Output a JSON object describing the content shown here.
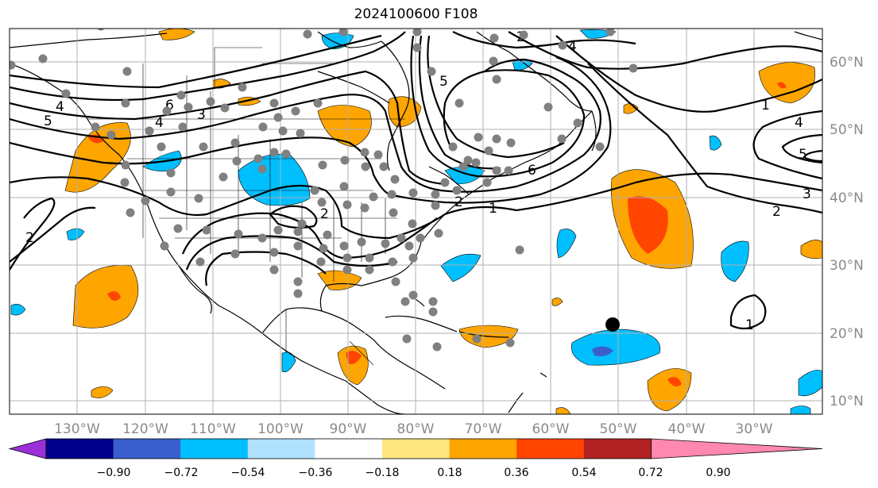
{
  "title": "2024100600 F108",
  "lon_labels": [
    "130°W",
    "120°W",
    "110°W",
    "100°W",
    "90°W",
    "80°W",
    "70°W",
    "60°W",
    "50°W",
    "40°W",
    "30°W"
  ],
  "lat_labels": [
    "60°N",
    "50°N",
    "40°N",
    "30°N",
    "20°N",
    "10°N"
  ],
  "colorbar": {
    "ticks": [
      "−0.90",
      "−0.72",
      "−0.54",
      "−0.36",
      "−0.18",
      "0.18",
      "0.36",
      "0.54",
      "0.72",
      "0.90"
    ],
    "colors": [
      "#9b30d8",
      "#00008b",
      "#3a5fcd",
      "#00bfff",
      "#b0e2ff",
      "#ffffff",
      "#ffe680",
      "#ffa500",
      "#ff4500",
      "#b22222",
      "#ff88b0"
    ]
  },
  "contour_labels": [
    "1",
    "2",
    "3",
    "4",
    "5",
    "6",
    "2",
    "1",
    "6",
    "5",
    "4",
    "2",
    "2",
    "3",
    "4",
    "5",
    "1"
  ],
  "colors": {
    "land_line": "#000000",
    "grid": "#b0b0b0",
    "contour": "#000000",
    "dots": "#808080",
    "storm_marker": "#000000"
  }
}
